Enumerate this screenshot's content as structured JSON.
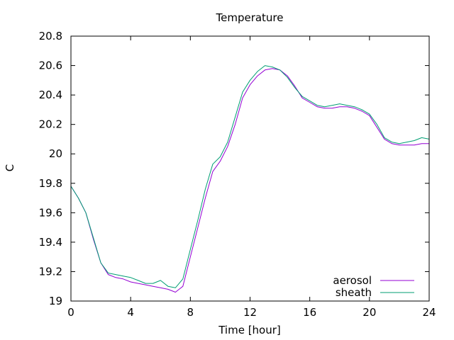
{
  "chart_data": {
    "type": "line",
    "title": "Temperature",
    "xlabel": "Time [hour]",
    "ylabel": "C",
    "xlim": [
      0,
      24
    ],
    "ylim": [
      19,
      20.8
    ],
    "xticks": [
      0,
      4,
      8,
      12,
      16,
      20,
      24
    ],
    "xtick_labels": [
      "0",
      "4",
      "8",
      "12",
      "16",
      "20",
      "24"
    ],
    "yticks": [
      19,
      19.2,
      19.4,
      19.6,
      19.8,
      20,
      20.2,
      20.4,
      20.6,
      20.8
    ],
    "ytick_labels": [
      "19",
      "19.2",
      "19.4",
      "19.6",
      "19.8",
      "20",
      "20.2",
      "20.4",
      "20.6",
      "20.8"
    ],
    "grid": false,
    "legend_position": "bottom-right",
    "series": [
      {
        "name": "aerosol",
        "color": "#9400d3",
        "x": [
          0,
          0.5,
          1,
          1.5,
          2,
          2.5,
          3,
          3.5,
          4,
          4.5,
          5,
          5.5,
          6,
          6.5,
          7,
          7.5,
          8,
          8.5,
          9,
          9.5,
          10,
          10.5,
          11,
          11.5,
          12,
          12.5,
          13,
          13.5,
          14,
          14.5,
          15,
          15.5,
          16,
          16.5,
          17,
          17.5,
          18,
          18.5,
          19,
          19.5,
          20,
          20.5,
          21,
          21.5,
          22,
          22.5,
          23,
          23.5,
          24
        ],
        "y": [
          19.78,
          19.7,
          19.6,
          19.42,
          19.26,
          19.18,
          19.16,
          19.15,
          19.13,
          19.12,
          19.11,
          19.1,
          19.09,
          19.08,
          19.06,
          19.1,
          19.3,
          19.5,
          19.7,
          19.88,
          19.95,
          20.05,
          20.2,
          20.38,
          20.47,
          20.53,
          20.57,
          20.58,
          20.57,
          20.53,
          20.46,
          20.38,
          20.35,
          20.32,
          20.31,
          20.31,
          20.32,
          20.32,
          20.31,
          20.29,
          20.26,
          20.18,
          20.1,
          20.07,
          20.06,
          20.06,
          20.06,
          20.07,
          20.07
        ]
      },
      {
        "name": "sheath",
        "color": "#009e73",
        "x": [
          0,
          0.5,
          1,
          1.5,
          2,
          2.5,
          3,
          3.5,
          4,
          4.5,
          5,
          5.5,
          6,
          6.5,
          7,
          7.5,
          8,
          8.5,
          9,
          9.5,
          10,
          10.5,
          11,
          11.5,
          12,
          12.5,
          13,
          13.5,
          14,
          14.5,
          15,
          15.5,
          16,
          16.5,
          17,
          17.5,
          18,
          18.5,
          19,
          19.5,
          20,
          20.5,
          21,
          21.5,
          22,
          22.5,
          23,
          23.5,
          24
        ],
        "y": [
          19.78,
          19.7,
          19.6,
          19.43,
          19.26,
          19.19,
          19.18,
          19.17,
          19.16,
          19.14,
          19.12,
          19.12,
          19.14,
          19.1,
          19.09,
          19.15,
          19.35,
          19.55,
          19.76,
          19.93,
          19.98,
          20.08,
          20.25,
          20.42,
          20.5,
          20.56,
          20.6,
          20.59,
          20.57,
          20.52,
          20.45,
          20.39,
          20.36,
          20.33,
          20.32,
          20.33,
          20.34,
          20.33,
          20.32,
          20.3,
          20.27,
          20.2,
          20.11,
          20.08,
          20.07,
          20.08,
          20.09,
          20.11,
          20.1
        ]
      }
    ]
  }
}
